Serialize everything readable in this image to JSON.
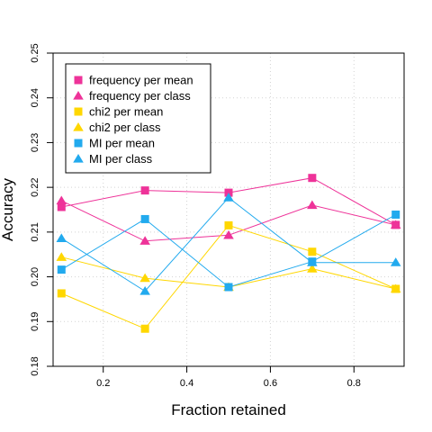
{
  "chart_data": {
    "type": "line",
    "title": "",
    "xlabel": "Fraction retained",
    "ylabel": "Accuracy",
    "xlim": [
      0.08,
      0.92
    ],
    "ylim": [
      0.18,
      0.25
    ],
    "x_ticks": [
      "0.2",
      "0.4",
      "0.6",
      "0.8"
    ],
    "y_ticks": [
      "0.18",
      "0.19",
      "0.20",
      "0.21",
      "0.22",
      "0.23",
      "0.24",
      "0.25"
    ],
    "grid": true,
    "legend_position": "top-left",
    "x": [
      0.1,
      0.3,
      0.5,
      0.7,
      0.9
    ],
    "series": [
      {
        "name": "frequency per mean",
        "marker": "square",
        "color": "#EE3399",
        "values": [
          0.2156,
          0.2193,
          0.2188,
          0.2221,
          0.2116
        ]
      },
      {
        "name": "frequency per class",
        "marker": "triangle",
        "color": "#EE3399",
        "values": [
          0.217,
          0.208,
          0.2093,
          0.216,
          0.2116
        ]
      },
      {
        "name": "chi2 per mean",
        "marker": "square",
        "color": "#FFD700",
        "values": [
          0.1963,
          0.1884,
          0.2115,
          0.2056,
          0.1973
        ]
      },
      {
        "name": "chi2 per class",
        "marker": "triangle",
        "color": "#FFD700",
        "values": [
          0.2044,
          0.1997,
          0.1977,
          0.2018,
          0.1973
        ]
      },
      {
        "name": "MI per mean",
        "marker": "square",
        "color": "#22AAEE",
        "values": [
          0.2016,
          0.2129,
          0.1977,
          0.2034,
          0.2139
        ]
      },
      {
        "name": "MI per class",
        "marker": "triangle",
        "color": "#22AAEE",
        "values": [
          0.2086,
          0.1968,
          0.2177,
          0.2032,
          0.2032
        ]
      }
    ]
  }
}
